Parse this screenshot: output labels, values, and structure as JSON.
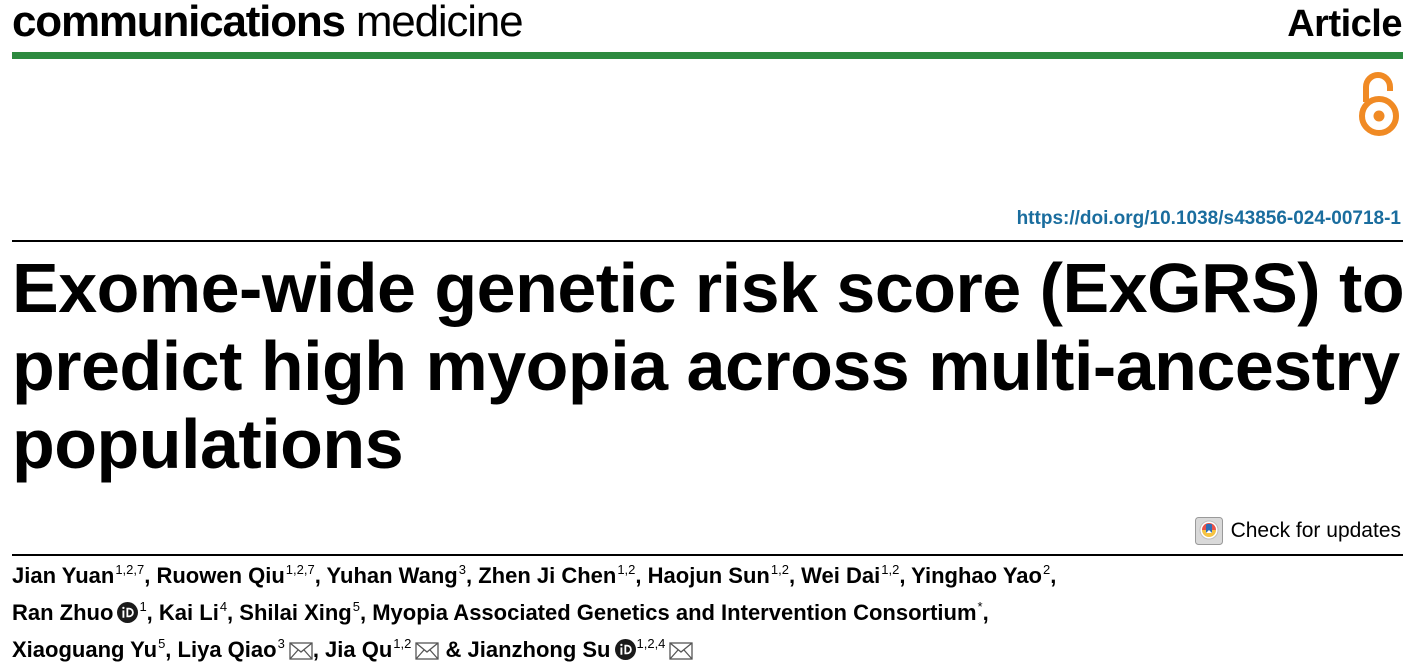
{
  "header": {
    "journal_bold": "communications",
    "journal_regular": "medicine",
    "article_type": "Article",
    "open_access_icon": "open-access-lock-icon",
    "green_rule_color": "#2d8a3f"
  },
  "doi": "https://doi.org/10.1038/s43856-024-00718-1",
  "title_lines": [
    "Exome-wide genetic risk score (ExGRS) to",
    "predict high myopia across multi-ancestry",
    "populations"
  ],
  "check_updates": {
    "label": "Check for updates",
    "icon": "crossmark-icon"
  },
  "authors": [
    {
      "name": "Jian Yuan",
      "aff": "1,2,7",
      "sep": ", "
    },
    {
      "name": "Ruowen Qiu",
      "aff": "1,2,7",
      "sep": ", "
    },
    {
      "name": "Yuhan Wang",
      "aff": "3",
      "sep": ", "
    },
    {
      "name": "Zhen Ji Chen",
      "aff": "1,2",
      "sep": ", "
    },
    {
      "name": "Haojun Sun",
      "aff": "1,2",
      "sep": ", "
    },
    {
      "name": "Wei Dai",
      "aff": "1,2",
      "sep": ", "
    },
    {
      "name": "Yinghao Yao",
      "aff": "2",
      "sep": ","
    },
    {
      "name": "Ran Zhuo",
      "aff": "1",
      "sep": ", "
    },
    {
      "name": "Kai Li",
      "aff": "4",
      "sep": ", "
    },
    {
      "name": "Shilai Xing",
      "aff": "5",
      "sep": ", "
    },
    {
      "name": "Myopia Associated Genetics and Intervention Consortium",
      "aff": "*",
      "sep": ","
    },
    {
      "name": "Xiaoguang Yu",
      "aff": "5",
      "sep": ", "
    },
    {
      "name": "Liya Qiao",
      "aff": "3",
      "sep": ", "
    },
    {
      "name": "Jia Qu",
      "aff": "1,2",
      "sep": " & "
    },
    {
      "name": "Jianzhong Su",
      "aff": "1,2,4",
      "sep": ""
    }
  ],
  "icons": {
    "orcid": "orcid-icon",
    "email": "email-icon",
    "orcid_color": "#1a1a1a",
    "oa_color": "#f08a24",
    "doi_color": "#1a6d9e"
  }
}
